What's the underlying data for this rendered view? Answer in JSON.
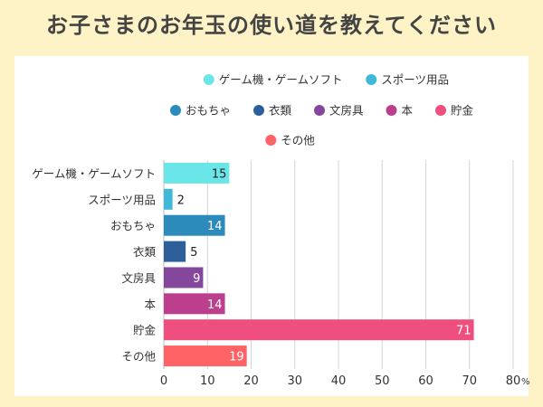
{
  "title": "お子さまのお年玉の使い道を教えてください",
  "chart_data": {
    "type": "bar",
    "orientation": "horizontal",
    "categories": [
      "ゲーム機・ゲームソフト",
      "スポーツ用品",
      "おもちゃ",
      "衣類",
      "文房具",
      "本",
      "貯金",
      "その他"
    ],
    "values": [
      15,
      2,
      14,
      5,
      9,
      14,
      71,
      19
    ],
    "colors": [
      "#6be6e8",
      "#40b8d8",
      "#2d8bbc",
      "#2d5f9a",
      "#84479c",
      "#bb3f8d",
      "#ef4f7e",
      "#ff6366"
    ],
    "xlim": [
      0,
      80
    ],
    "xticks": [
      0,
      10,
      20,
      30,
      40,
      50,
      60,
      70,
      80
    ],
    "xunit": "%",
    "grid": true,
    "legend_position": "top"
  }
}
